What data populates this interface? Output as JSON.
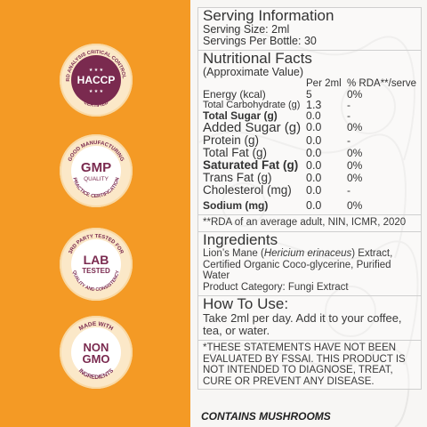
{
  "colors": {
    "left_panel": "#f49a25",
    "badge_purple": "#7a2a4f",
    "badge_ring": "#fbe8c8"
  },
  "badges": [
    {
      "icon": "haccp-badge-icon",
      "main": "HACCP",
      "arc_top": "HAZARD ANALYSIS CRITICAL CONTROL POINT",
      "arc_bottom": "CERTIFIED"
    },
    {
      "icon": "gmp-badge-icon",
      "main": "GMP",
      "sub": "QUALITY",
      "arc_top": "GOOD MANUFACTURING",
      "arc_bottom": "PRACTICE CERTIFICATION"
    },
    {
      "icon": "lab-tested-badge-icon",
      "main": "LAB",
      "sub": "TESTED",
      "arc_top": "3RD PARTY TESTED FOR",
      "arc_bottom": "QUALITY AND CONSISTENCY"
    },
    {
      "icon": "non-gmo-badge-icon",
      "main": "NON",
      "sub": "GMO",
      "arc_top": "MADE WITH",
      "arc_bottom": "INGREDIENTS"
    }
  ],
  "serving": {
    "title": "Serving Information",
    "size": "Serving Size: 2ml",
    "servings": "Servings Per Bottle: 30"
  },
  "nutrition": {
    "title": "Nutritional Facts",
    "subtitle": "(Approximate Value)",
    "col_per": "Per 2ml",
    "col_rda": "% RDA**/serve",
    "rows": [
      {
        "name": "Energy (kcal)",
        "per": "5",
        "rda": "0%"
      },
      {
        "name": "Total Carbohydrate (g)",
        "per": "1.3",
        "rda": "-"
      },
      {
        "name": "Total Sugar (g)",
        "per": "0.0",
        "rda": "-"
      },
      {
        "name": "Added Sugar (g)",
        "per": "0.0",
        "rda": "0%"
      },
      {
        "name": "Protein (g)",
        "per": "0.0",
        "rda": "-"
      },
      {
        "name": "Total Fat (g)",
        "per": "0.0",
        "rda": "0%"
      },
      {
        "name": "Saturated Fat (g)",
        "per": "0.0",
        "rda": "0%"
      },
      {
        "name": "Trans Fat (g)",
        "per": "0.0",
        "rda": "0%"
      },
      {
        "name": "Cholesterol (mg)",
        "per": "0.0",
        "rda": "-"
      },
      {
        "name": "Sodium (mg)",
        "per": "0.0",
        "rda": "0%"
      }
    ],
    "footnote": "**RDA of an average adult, NIN, ICMR, 2020"
  },
  "ingredients": {
    "title": "Ingredients",
    "line1_pre": "Lion’s Mane (",
    "line1_italic": "Hericium erinaceus",
    "line1_post": ") Extract,",
    "line2": "Certified Organic Coco-glycerine, Purified Water",
    "line3": "Product Category: Fungi Extract"
  },
  "how_to_use": {
    "title": "How To Use:",
    "text": "Take 2ml per day. Add it to your coffee, tea, or water."
  },
  "disclaimer": "*THESE STATEMENTS HAVE NOT BEEN EVALUATED BY FSSAI. THIS PRODUCT IS NOT INTENDED TO DIAGNOSE, TREAT, CURE OR PREVENT ANY DISEASE.",
  "contains": "CONTAINS MUSHROOMS"
}
